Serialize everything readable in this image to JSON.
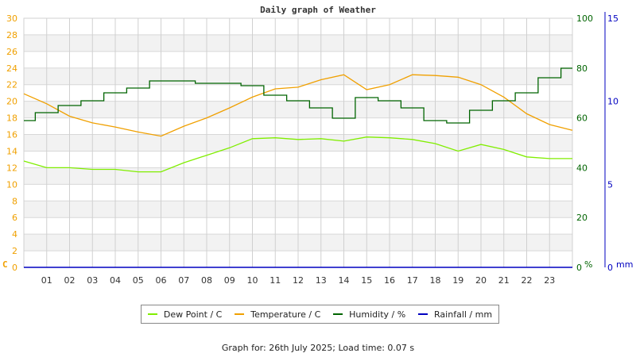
{
  "chart_data": {
    "type": "line",
    "title": "Daily graph of Weather",
    "xlabel": "",
    "x": [
      0,
      1,
      2,
      3,
      4,
      5,
      6,
      7,
      8,
      9,
      10,
      11,
      12,
      13,
      14,
      15,
      16,
      17,
      18,
      19,
      20,
      21,
      22,
      23,
      24
    ],
    "x_tick_labels": [
      "01",
      "02",
      "03",
      "04",
      "05",
      "06",
      "07",
      "08",
      "09",
      "10",
      "11",
      "12",
      "13",
      "14",
      "15",
      "16",
      "17",
      "18",
      "19",
      "20",
      "21",
      "22",
      "23"
    ],
    "axes": {
      "left": {
        "label": "C",
        "ticks": [
          0,
          2,
          4,
          6,
          8,
          10,
          12,
          14,
          16,
          18,
          20,
          22,
          24,
          26,
          28,
          30
        ],
        "range": [
          0,
          30
        ],
        "color": "#f0a000"
      },
      "right_humidity": {
        "label": "%",
        "ticks": [
          0,
          20,
          40,
          60,
          80,
          100
        ],
        "range": [
          0,
          100
        ],
        "color": "#006400"
      },
      "right_rain": {
        "label": "mm",
        "ticks": [
          0,
          5,
          10,
          15
        ],
        "range": [
          0,
          15
        ],
        "color": "#0000c0"
      }
    },
    "grid": true,
    "legend_position": "bottom",
    "series": [
      {
        "name": "Dew Point / C",
        "color": "#80ee00",
        "axis": "left",
        "values": [
          12.8,
          12.0,
          12.0,
          11.8,
          11.8,
          11.5,
          11.5,
          12.6,
          13.5,
          14.4,
          15.5,
          15.6,
          15.4,
          15.5,
          15.2,
          15.7,
          15.6,
          15.4,
          14.9,
          14.0,
          14.8,
          14.2,
          13.3,
          13.1,
          13.1
        ]
      },
      {
        "name": "Temperature / C",
        "color": "#f0a000",
        "axis": "left",
        "values": [
          20.9,
          19.7,
          18.2,
          17.4,
          16.9,
          16.3,
          15.8,
          17.0,
          18.0,
          19.2,
          20.5,
          21.5,
          21.7,
          22.6,
          23.2,
          21.4,
          22.0,
          23.2,
          23.1,
          22.9,
          22.0,
          20.5,
          18.5,
          17.2,
          16.5
        ]
      },
      {
        "name": "Humidity / %",
        "color": "#006400",
        "axis": "right_humidity",
        "values": [
          59,
          62,
          65,
          67,
          70,
          72,
          75,
          75,
          74,
          74,
          73,
          69,
          67,
          64,
          60,
          68,
          67,
          64,
          59,
          58,
          63,
          67,
          70,
          76,
          80
        ]
      },
      {
        "name": "Rainfall / mm",
        "color": "#0000c0",
        "axis": "right_rain",
        "values": [
          0,
          0,
          0,
          0,
          0,
          0,
          0,
          0,
          0,
          0,
          0,
          0,
          0,
          0,
          0,
          0,
          0,
          0,
          0,
          0,
          0,
          0,
          0,
          0,
          0
        ]
      }
    ]
  },
  "legend": {
    "items": [
      {
        "label": "Dew Point / C",
        "color": "#80ee00"
      },
      {
        "label": "Temperature / C",
        "color": "#f0a000"
      },
      {
        "label": "Humidity / %",
        "color": "#006400"
      },
      {
        "label": "Rainfall / mm",
        "color": "#0000c0"
      }
    ]
  },
  "footer": {
    "text": "Graph for: 26th July 2025; Load time: 0.07 s"
  }
}
